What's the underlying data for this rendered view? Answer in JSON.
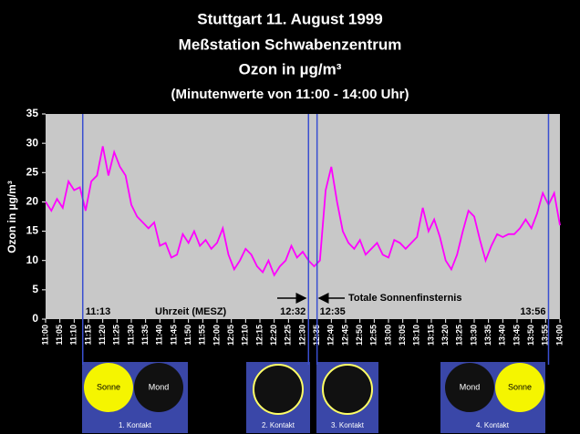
{
  "chart_data": {
    "type": "line",
    "title": [
      "Stuttgart 11. August 1999",
      "Meßstation Schwabenzentrum",
      "Ozon in µg/m³",
      "(Minutenwerte von 11:00 - 14:00 Uhr)"
    ],
    "y_label": "Ozon in µg/m³",
    "x_label": "Uhrzeit (MESZ)",
    "annotation": "Totale Sonnenfinsternis",
    "color": "#ff00ff",
    "x": [
      "11:00",
      "11:02",
      "11:04",
      "11:06",
      "11:08",
      "11:10",
      "11:12",
      "11:14",
      "11:16",
      "11:18",
      "11:20",
      "11:22",
      "11:24",
      "11:26",
      "11:28",
      "11:30",
      "11:32",
      "11:34",
      "11:36",
      "11:38",
      "11:40",
      "11:42",
      "11:44",
      "11:46",
      "11:48",
      "11:50",
      "11:52",
      "11:54",
      "11:56",
      "11:58",
      "12:00",
      "12:02",
      "12:04",
      "12:06",
      "12:08",
      "12:10",
      "12:12",
      "12:14",
      "12:16",
      "12:18",
      "12:20",
      "12:22",
      "12:24",
      "12:26",
      "12:28",
      "12:30",
      "12:32",
      "12:34",
      "12:36",
      "12:38",
      "12:40",
      "12:42",
      "12:44",
      "12:46",
      "12:48",
      "12:50",
      "12:52",
      "12:54",
      "12:56",
      "12:58",
      "13:00",
      "13:02",
      "13:04",
      "13:06",
      "13:08",
      "13:10",
      "13:12",
      "13:14",
      "13:16",
      "13:18",
      "13:20",
      "13:22",
      "13:24",
      "13:26",
      "13:28",
      "13:30",
      "13:32",
      "13:34",
      "13:36",
      "13:38",
      "13:40",
      "13:42",
      "13:44",
      "13:46",
      "13:48",
      "13:50",
      "13:52",
      "13:54",
      "13:56",
      "13:58",
      "14:00"
    ],
    "values": [
      20,
      18.5,
      20.5,
      19,
      23.5,
      22,
      22.5,
      18.5,
      23.5,
      24.5,
      29.5,
      24.5,
      28.5,
      26,
      24.5,
      19.5,
      17.5,
      16.5,
      15.5,
      16.5,
      12.5,
      13,
      10.5,
      11,
      14.5,
      13,
      15,
      12.5,
      13.5,
      12,
      13,
      15.5,
      11,
      8.5,
      10,
      12,
      11,
      9,
      8,
      10,
      7.5,
      9,
      10,
      12.5,
      10.5,
      11.5,
      10,
      9,
      10,
      22,
      26,
      20,
      15,
      13,
      12,
      13.5,
      11,
      12,
      13,
      11,
      10.5,
      13.5,
      13,
      12,
      13,
      14,
      19,
      15,
      17,
      14,
      10,
      8.5,
      11,
      15,
      18.5,
      17.5,
      13.5,
      10,
      12.5,
      14.5,
      14,
      14.5,
      14.5,
      15.5,
      17,
      15.5,
      18,
      21.5,
      19.5,
      21.5,
      16
    ],
    "xlim": [
      "11:00",
      "14:00"
    ],
    "xticks": [
      "11:00",
      "11:05",
      "11:10",
      "11:15",
      "11:20",
      "11:25",
      "11:30",
      "11:35",
      "11:40",
      "11:45",
      "11:50",
      "11:55",
      "12:00",
      "12:05",
      "12:10",
      "12:15",
      "12:20",
      "12:25",
      "12:30",
      "12:35",
      "12:40",
      "12:45",
      "12:50",
      "12:55",
      "13:00",
      "13:05",
      "13:10",
      "13:15",
      "13:20",
      "13:25",
      "13:30",
      "13:35",
      "13:40",
      "13:45",
      "13:50",
      "13:55",
      "14:00"
    ],
    "ylim": [
      0,
      35
    ],
    "yticks": [
      0,
      5,
      10,
      15,
      20,
      25,
      30,
      35
    ],
    "contacts": [
      {
        "time": "11:13",
        "label": "1. Kontakt"
      },
      {
        "time": "12:32",
        "label": "2. Kontakt"
      },
      {
        "time": "12:35",
        "label": "3. Kontakt"
      },
      {
        "time": "13:56",
        "label": "4. Kontakt"
      }
    ],
    "sun_label": "Sonne",
    "moon_label": "Mond"
  }
}
